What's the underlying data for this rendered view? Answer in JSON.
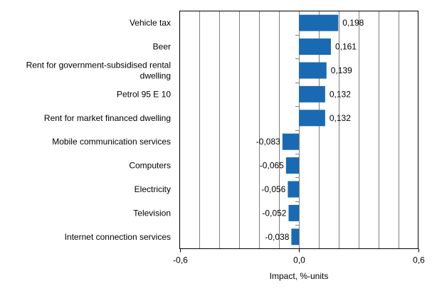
{
  "chart_data": {
    "type": "bar",
    "orientation": "horizontal",
    "categories": [
      [
        "Vehicle tax"
      ],
      [
        "Beer"
      ],
      [
        "Rent for government-subsidised rental",
        "dwelling"
      ],
      [
        "Petrol 95 E 10"
      ],
      [
        "Rent for market financed dwelling"
      ],
      [
        "Mobile communication services"
      ],
      [
        "Computers"
      ],
      [
        "Electricity"
      ],
      [
        "Television"
      ],
      [
        "Internet connection services"
      ]
    ],
    "values": [
      0.198,
      0.161,
      0.139,
      0.132,
      0.132,
      -0.083,
      -0.065,
      -0.056,
      -0.052,
      -0.038
    ],
    "value_labels": [
      "0,198",
      "0,161",
      "0,139",
      "0,132",
      "0,132",
      "-0,083",
      "-0,065",
      "-0,056",
      "-0,052",
      "-0,038"
    ],
    "xlabel": "Impact, %-units",
    "xlim": [
      -0.6,
      0.6
    ],
    "xticks": [
      -0.6,
      0.0,
      0.6
    ],
    "xtick_labels": [
      "-0,6",
      "0,0",
      "0,6"
    ],
    "grid": "vertical, every 0.1",
    "bar_color": "#1a6ab3",
    "legend": "none"
  }
}
